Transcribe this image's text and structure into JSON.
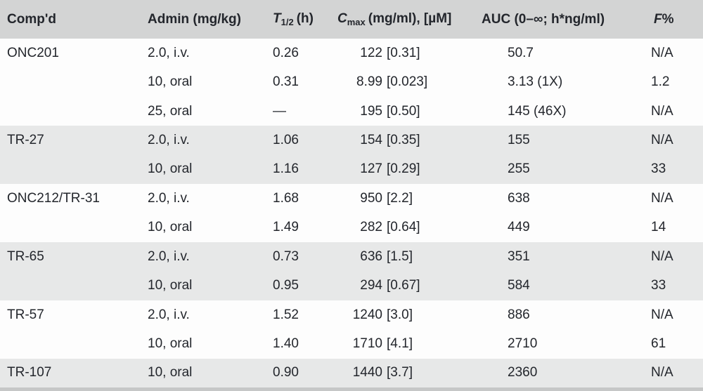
{
  "table": {
    "columns": {
      "compound": "Comp'd",
      "admin": "Admin (mg/kg)",
      "thalf_prefix": "T",
      "thalf_sub": "1/2",
      "thalf_unit": "(h)",
      "cmax_prefix": "C",
      "cmax_sub": "max",
      "cmax_unit": "(mg/ml), [µM]",
      "auc": "AUC (0–∞; h*ng/ml)",
      "f_prefix": "F",
      "f_suffix": "%"
    },
    "rows": [
      {
        "compound": "ONC201",
        "admin": "2.0, i.v.",
        "t_half": "0.26",
        "cmax_value": "122",
        "cmax_bracket": "[0.31]",
        "auc": "50.7",
        "f": "N/A"
      },
      {
        "compound": "",
        "admin": "10, oral",
        "t_half": "0.31",
        "cmax_value": "8.99",
        "cmax_bracket": "[0.023]",
        "auc": "3.13 (1X)",
        "f": "1.2"
      },
      {
        "compound": "",
        "admin": "25, oral",
        "t_half": "—",
        "cmax_value": "195",
        "cmax_bracket": "[0.50]",
        "auc": "145 (46X)",
        "f": "N/A"
      },
      {
        "compound": "TR-27",
        "admin": "2.0, i.v.",
        "t_half": "1.06",
        "cmax_value": "154",
        "cmax_bracket": "[0.35]",
        "auc": "155",
        "f": "N/A"
      },
      {
        "compound": "",
        "admin": "10, oral",
        "t_half": "1.16",
        "cmax_value": "127",
        "cmax_bracket": "[0.29]",
        "auc": "255",
        "f": "33"
      },
      {
        "compound": "ONC212/TR-31",
        "admin": "2.0, i.v.",
        "t_half": "1.68",
        "cmax_value": "950",
        "cmax_bracket": "[2.2]",
        "auc": "638",
        "f": "N/A"
      },
      {
        "compound": "",
        "admin": "10, oral",
        "t_half": "1.49",
        "cmax_value": "282",
        "cmax_bracket": "[0.64]",
        "auc": "449",
        "f": "14"
      },
      {
        "compound": "TR-65",
        "admin": "2.0, i.v.",
        "t_half": "0.73",
        "cmax_value": "636",
        "cmax_bracket": "[1.5]",
        "auc": "351",
        "f": "N/A"
      },
      {
        "compound": "",
        "admin": "10, oral",
        "t_half": "0.95",
        "cmax_value": "294",
        "cmax_bracket": "[0.67]",
        "auc": "584",
        "f": "33"
      },
      {
        "compound": "TR-57",
        "admin": "2.0, i.v.",
        "t_half": "1.52",
        "cmax_value": "1240",
        "cmax_bracket": "[3.0]",
        "auc": "886",
        "f": "N/A"
      },
      {
        "compound": "",
        "admin": "10, oral",
        "t_half": "1.40",
        "cmax_value": "1710",
        "cmax_bracket": "[4.1]",
        "auc": "2710",
        "f": "61"
      },
      {
        "compound": "TR-107",
        "admin": "10, oral",
        "t_half": "0.90",
        "cmax_value": "1440",
        "cmax_bracket": "[3.7]",
        "auc": "2360",
        "f": "N/A"
      }
    ],
    "colors": {
      "header_bg": "#d3d4d4",
      "row_gray_bg": "#e7e8e8",
      "row_white_bg": "#fdfdfd",
      "bottom_border": "#c6c7c7",
      "text": "#23262c"
    }
  }
}
